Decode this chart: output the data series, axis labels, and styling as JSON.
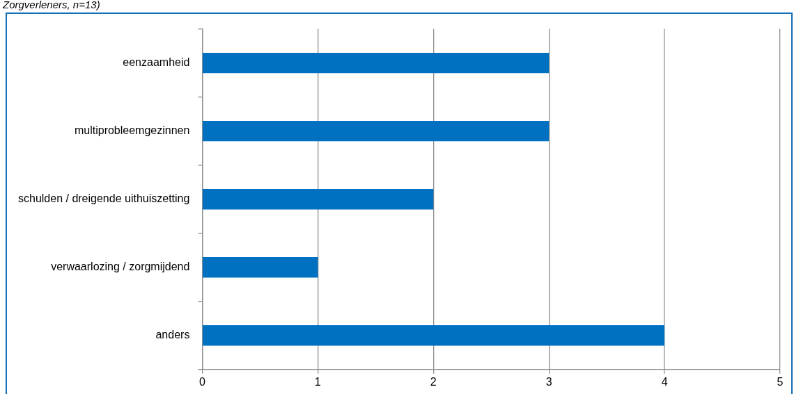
{
  "chart_data": {
    "type": "bar",
    "orientation": "horizontal",
    "title": "Zorgverleners, n=13)",
    "categories": [
      "eenzaamheid",
      "multiprobleemgezinnen",
      "schulden / dreigende uithuiszetting",
      "verwaarlozing / zorgmijdend",
      "anders"
    ],
    "values": [
      3,
      3,
      2,
      1,
      4
    ],
    "color": "#0070c0",
    "xlim": [
      0,
      5
    ],
    "xticks": [
      0,
      1,
      2,
      3,
      4,
      5
    ],
    "grid": "x"
  }
}
